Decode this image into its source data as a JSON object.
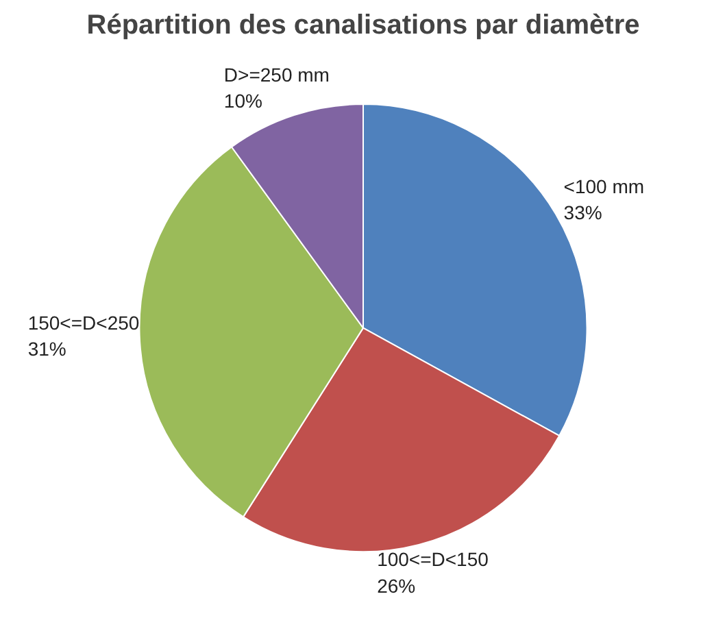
{
  "chart_data": {
    "type": "pie",
    "title": "Répartition des canalisations par diamètre",
    "categories": [
      "<100 mm",
      "100<=D<150",
      "150<=D<250",
      "D>=250 mm"
    ],
    "values": [
      33,
      26,
      31,
      10
    ],
    "colors": [
      "#4f81bd",
      "#c0504d",
      "#9bbb59",
      "#8064a2"
    ],
    "value_labels": [
      "33%",
      "26%",
      "31%",
      "10%"
    ]
  }
}
